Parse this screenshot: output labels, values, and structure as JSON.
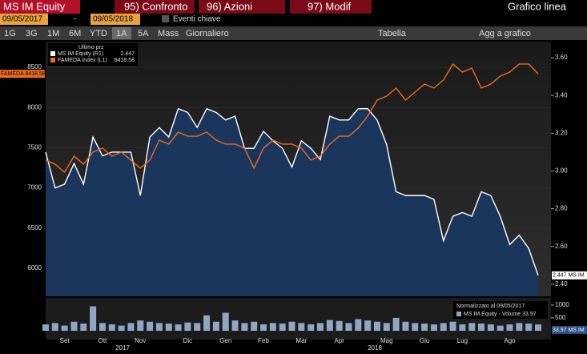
{
  "toolbar": {
    "security": "MS IM Equity",
    "buttons": [
      "95) Confronto",
      "96) Azioni",
      "97) Modif"
    ],
    "view": "Grafico linea"
  },
  "range_bar": {
    "start": "09/05/2017",
    "separator": "-",
    "end": "09/05/2018",
    "events": "Eventi chiave"
  },
  "period_bar": {
    "periods": [
      "1G",
      "3G",
      "1M",
      "6M",
      "YTD",
      "1A",
      "5A",
      "Mass"
    ],
    "frequency": "Giornaliero",
    "table": "Tabella",
    "add": "Agg a grafico"
  },
  "chart_data": {
    "type": "line",
    "legend_title": "Ultimo prz",
    "legend_values": [
      "2.447",
      "8418.58"
    ],
    "badges": {
      "left": "FAMEDA 8418.58",
      "right": "2.447 MS IM",
      "volume": "33.97 MS IM"
    },
    "categories": [
      null,
      null,
      "Set",
      null,
      null,
      null,
      "Ott",
      null,
      null,
      null,
      "Nov",
      null,
      null,
      null,
      null,
      "Dic",
      null,
      null,
      null,
      "Gen",
      null,
      null,
      null,
      "Feb",
      null,
      null,
      null,
      "Mar",
      null,
      null,
      null,
      "Apr",
      null,
      null,
      null,
      null,
      "Mag",
      null,
      null,
      null,
      "Giu",
      null,
      null,
      null,
      "Lug",
      null,
      null,
      null,
      null,
      "Ago",
      null,
      null,
      null
    ],
    "x_groups": [
      "2017",
      "2018"
    ],
    "ylim": [
      5651,
      8739
    ],
    "yticks": [
      6000,
      6500,
      7000,
      7500,
      8000,
      8500
    ],
    "y2lim": [
      2.336,
      3.651
    ],
    "y2ticks": [
      {
        "value": 2.4,
        "label": "2.40"
      },
      {
        "value": 2.6,
        "label": "2.60"
      },
      {
        "value": 2.8,
        "label": "2.80"
      },
      {
        "value": 3.0,
        "label": "3.00"
      },
      {
        "value": 3.2,
        "label": "3.20"
      },
      {
        "value": 3.4,
        "label": "3.40"
      },
      {
        "value": 3.6,
        "label": "3.60"
      }
    ],
    "grid": true,
    "series": [
      {
        "name": "MS IM Equity (R1)",
        "color": "#ffffff",
        "axis": "y2",
        "area_color": "#1b365d",
        "values": [
          3.1,
          2.91,
          2.93,
          3.04,
          2.93,
          3.18,
          3.08,
          3.1,
          3.1,
          3.1,
          2.87,
          3.18,
          3.23,
          3.18,
          3.33,
          3.31,
          3.23,
          3.33,
          3.31,
          3.27,
          3.29,
          3.12,
          3.12,
          3.21,
          3.16,
          3.12,
          3.02,
          3.16,
          3.12,
          3.06,
          3.29,
          3.27,
          3.27,
          3.33,
          3.33,
          3.27,
          3.14,
          2.89,
          2.87,
          2.87,
          2.87,
          2.85,
          2.63,
          2.76,
          2.78,
          2.76,
          2.89,
          2.87,
          2.76,
          2.61,
          2.66,
          2.59,
          2.447
        ]
      },
      {
        "name": "FAMEDA Index (L1)",
        "color": "#f26a1b",
        "values": [
          7345,
          7295,
          7195,
          7395,
          7295,
          7445,
          7495,
          7395,
          7445,
          7345,
          7245,
          7345,
          7594,
          7544,
          7693,
          7643,
          7643,
          7693,
          7594,
          7544,
          7544,
          7494,
          7245,
          7494,
          7594,
          7544,
          7544,
          7494,
          7345,
          7395,
          7544,
          7643,
          7643,
          7743,
          7892,
          8092,
          8141,
          8241,
          8092,
          8191,
          8291,
          8241,
          8341,
          8540,
          8440,
          8490,
          8241,
          8291,
          8390,
          8440,
          8540,
          8540,
          8418.58
        ]
      }
    ],
    "volume": {
      "title": "Normalizzato al 09/05/2017",
      "name": "MS IM Equity - Volume 33.97",
      "color": "#8fa6c4",
      "ylim": [
        0,
        1150
      ],
      "yticks": [
        500,
        1000
      ],
      "values": [
        250,
        300,
        200,
        350,
        280,
        950,
        300,
        250,
        200,
        300,
        400,
        350,
        300,
        280,
        250,
        320,
        300,
        600,
        350,
        700,
        400,
        300,
        350,
        250,
        300,
        280,
        350,
        300,
        250,
        300,
        420,
        380,
        300,
        450,
        400,
        350,
        300,
        500,
        350,
        300,
        280,
        250,
        300,
        350,
        250,
        300,
        280,
        250,
        200,
        250,
        300,
        280,
        250
      ]
    }
  }
}
